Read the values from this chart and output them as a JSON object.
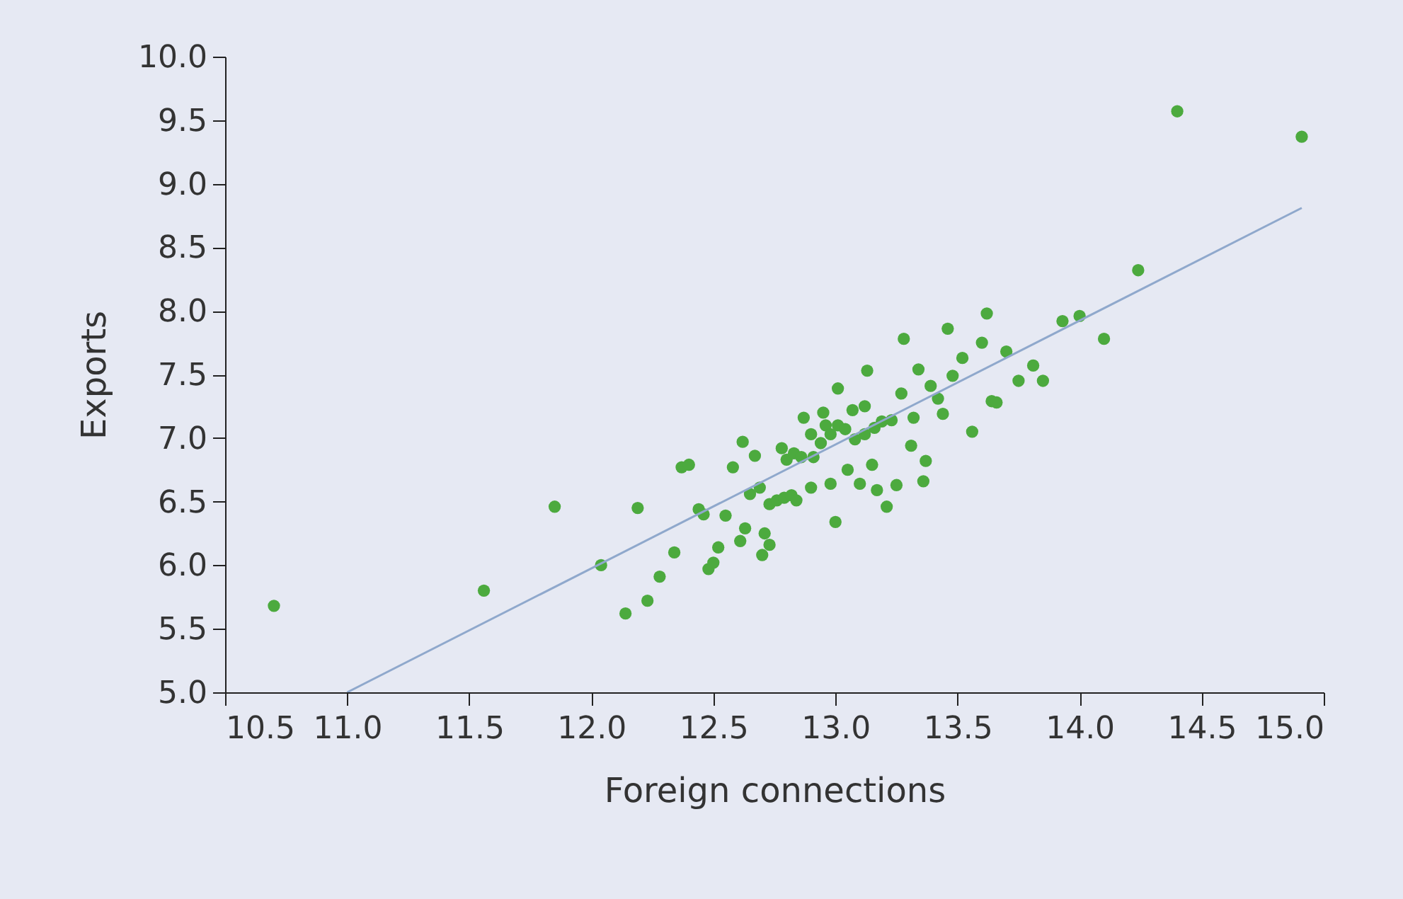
{
  "chart_data": {
    "type": "scatter",
    "xlabel": "Foreign connections",
    "ylabel": "Exports",
    "xlim": [
      10.5,
      15.0
    ],
    "xticks": [
      10.5,
      {
        "value": 11,
        "label": "11.0"
      },
      11.5,
      {
        "value": 12,
        "label": "12.0"
      },
      12.5,
      {
        "value": 13,
        "label": "13.0"
      },
      13.5,
      {
        "value": 14,
        "label": "14.0"
      },
      14.5,
      {
        "value": 15,
        "label": "15.0"
      }
    ],
    "ylim": [
      5.0,
      10.0
    ],
    "yticks": [
      {
        "value": 5,
        "label": "5.0"
      },
      5.5,
      {
        "value": 6,
        "label": "6.0"
      },
      6.5,
      {
        "value": 7,
        "label": "7.0"
      },
      7.5,
      {
        "value": 8,
        "label": "8.0"
      },
      8.5,
      {
        "value": 9,
        "label": "9.0"
      },
      9.5,
      {
        "value": 10,
        "label": "10.0"
      }
    ],
    "grid": false,
    "series": [
      {
        "color": "#4caa3e",
        "marker": "circle",
        "x": [
          10.7,
          11.56,
          11.85,
          12.04,
          12.14,
          12.23,
          12.28,
          12.34,
          12.19,
          12.37,
          12.4,
          12.44,
          12.46,
          12.55,
          12.58,
          12.48,
          12.5,
          12.52,
          12.61,
          12.63,
          12.62,
          12.67,
          12.65,
          12.69,
          12.71,
          12.73,
          12.7,
          12.73,
          12.76,
          12.79,
          12.82,
          12.84,
          12.78,
          12.8,
          12.83,
          12.86,
          12.87,
          12.9,
          12.91,
          12.95,
          12.96,
          12.94,
          12.98,
          12.9,
          12.98,
          13.01,
          13.04,
          13.0,
          13.01,
          13.05,
          13.1,
          13.07,
          13.12,
          13.08,
          13.12,
          13.16,
          13.19,
          13.23,
          13.13,
          13.15,
          13.17,
          13.21,
          13.25,
          13.28,
          13.27,
          13.32,
          13.31,
          13.37,
          13.36,
          13.34,
          13.39,
          13.42,
          13.44,
          13.46,
          13.48,
          13.52,
          13.56,
          13.6,
          13.62,
          13.64,
          13.7,
          13.81,
          13.75,
          13.85,
          13.66,
          13.93,
          14.0,
          14.1,
          14.24,
          14.4,
          14.91
        ],
        "values": [
          5.68,
          5.8,
          6.46,
          6.0,
          5.62,
          5.72,
          5.91,
          6.1,
          6.45,
          6.77,
          6.79,
          6.44,
          6.4,
          6.39,
          6.77,
          5.97,
          6.02,
          6.14,
          6.19,
          6.29,
          6.97,
          6.86,
          6.56,
          6.61,
          6.25,
          6.16,
          6.08,
          6.48,
          6.51,
          6.53,
          6.55,
          6.51,
          6.92,
          6.83,
          6.88,
          6.85,
          7.16,
          7.03,
          6.85,
          7.2,
          7.1,
          6.96,
          7.03,
          6.61,
          6.64,
          7.1,
          7.07,
          6.34,
          7.39,
          6.75,
          6.64,
          7.22,
          7.25,
          6.99,
          7.03,
          7.08,
          7.13,
          7.14,
          7.53,
          6.79,
          6.59,
          6.46,
          6.63,
          7.78,
          7.35,
          7.16,
          6.94,
          6.82,
          6.66,
          7.54,
          7.41,
          7.31,
          7.19,
          7.86,
          7.49,
          7.63,
          7.05,
          7.75,
          7.98,
          7.29,
          7.68,
          7.57,
          7.45,
          7.45,
          7.28,
          7.92,
          7.96,
          7.78,
          8.32,
          9.57,
          9.37
        ]
      },
      {
        "type": "line",
        "marker": "none",
        "color": "#8fa8cc",
        "x": [
          11.0,
          14.91
        ],
        "values": [
          5.0,
          8.81
        ]
      }
    ]
  }
}
